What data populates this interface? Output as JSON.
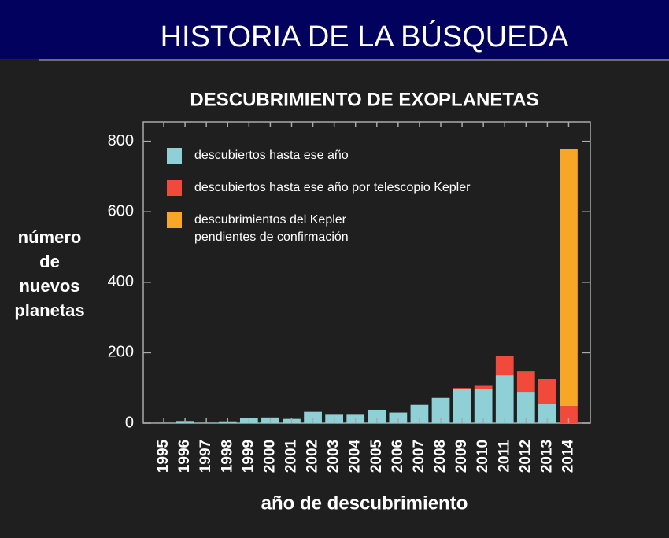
{
  "header": {
    "title": "HISTORIA DE LA BÚSQUEDA"
  },
  "chart_data": {
    "type": "stacked-bar",
    "title": "DESCUBRIMIENTO DE EXOPLANETAS",
    "x_label": "año de descubrimiento",
    "y_label": "número de nuevos planetas",
    "categories": [
      "1995",
      "1996",
      "1997",
      "1998",
      "1999",
      "2000",
      "2001",
      "2002",
      "2003",
      "2004",
      "2005",
      "2006",
      "2007",
      "2008",
      "2009",
      "2010",
      "2011",
      "2012",
      "2013",
      "2014"
    ],
    "series": [
      {
        "name": "descubiertos hasta ese año",
        "color": "#8fcfd6",
        "values": [
          1,
          6,
          1,
          5,
          14,
          16,
          12,
          32,
          26,
          26,
          38,
          30,
          52,
          72,
          98,
          96,
          136,
          87,
          54,
          0
        ]
      },
      {
        "name": "descubiertos hasta ese año por telescopio Kepler",
        "color": "#f24a3a",
        "values": [
          0,
          0,
          0,
          0,
          0,
          0,
          0,
          0,
          0,
          0,
          0,
          0,
          0,
          0,
          2,
          10,
          54,
          60,
          71,
          49
        ]
      },
      {
        "name": "descubrimientos del Kepler pendientes de confirmación",
        "color": "#f7a626",
        "values": [
          0,
          0,
          0,
          0,
          0,
          0,
          0,
          0,
          0,
          0,
          0,
          0,
          0,
          0,
          0,
          0,
          0,
          0,
          0,
          729
        ]
      }
    ],
    "ylim": [
      0,
      855
    ],
    "yticks": [
      0,
      200,
      400,
      600,
      800
    ],
    "legend": "upper-left"
  }
}
